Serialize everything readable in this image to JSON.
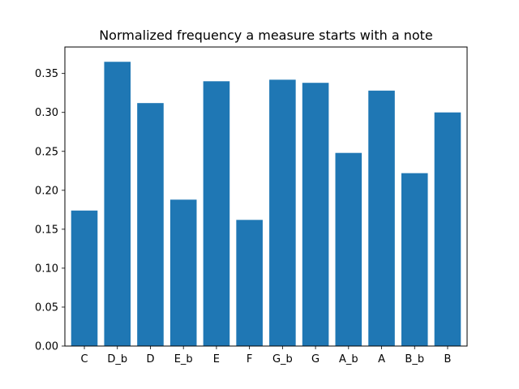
{
  "chart_data": {
    "type": "bar",
    "title": "Normalized frequency a measure starts with a note",
    "xlabel": "",
    "ylabel": "",
    "categories": [
      "C",
      "D_b",
      "D",
      "E_b",
      "E",
      "F",
      "G_b",
      "G",
      "A_b",
      "A",
      "B_b",
      "B"
    ],
    "values": [
      0.174,
      0.365,
      0.312,
      0.188,
      0.34,
      0.162,
      0.342,
      0.338,
      0.248,
      0.328,
      0.222,
      0.3
    ],
    "ylim": [
      0,
      0.384
    ],
    "yticks": [
      "0.00",
      "0.05",
      "0.10",
      "0.15",
      "0.20",
      "0.25",
      "0.30",
      "0.35"
    ],
    "ytick_values": [
      0,
      0.05,
      0.1,
      0.15,
      0.2,
      0.25,
      0.3,
      0.35
    ],
    "bar_color": "#1f77b4",
    "grid": false,
    "legend": "none"
  }
}
